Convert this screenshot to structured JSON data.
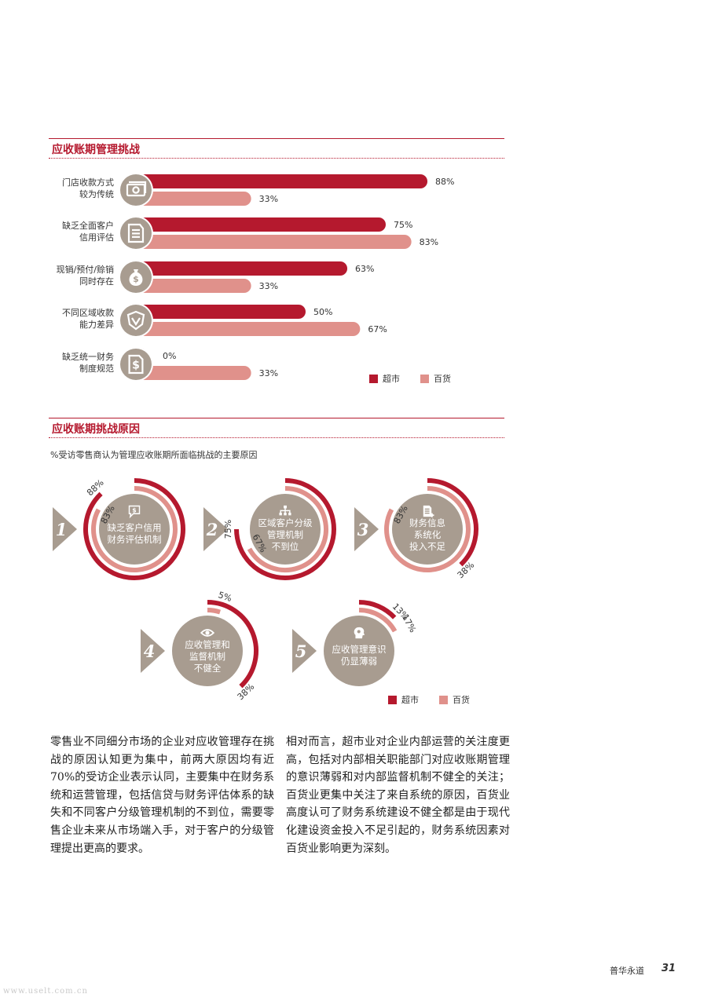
{
  "colors": {
    "supermarket": "#b5192e",
    "department": "#e0918b",
    "circle": "#a89c90",
    "arrow": "#a89c90",
    "accent": "#b5192e"
  },
  "section1": {
    "title": "应收账期管理挑战"
  },
  "section2": {
    "title": "应收账期挑战原因",
    "subtitle": "%受访零售商认为管理应收账期所面临挑战的主要原因"
  },
  "legend": {
    "supermarket": "超市",
    "department": "百货"
  },
  "chart_data": [
    {
      "type": "bar",
      "orientation": "horizontal",
      "title": "应收账期管理挑战",
      "categories": [
        [
          "门店收款方式",
          "较为传统"
        ],
        [
          "缺乏全面客户",
          "信用评估"
        ],
        [
          "现销/预付/赊销",
          "同时存在"
        ],
        [
          "不同区域收款",
          "能力差异"
        ],
        [
          "缺乏统一财务",
          "制度规范"
        ]
      ],
      "icons": [
        "money-icon",
        "document-icon",
        "money-bag-icon",
        "shield-icon",
        "dollar-document-icon"
      ],
      "series": [
        {
          "name": "超市",
          "values": [
            88,
            75,
            63,
            50,
            0
          ],
          "labels": [
            "88%",
            "75%",
            "63%",
            "50%",
            "0%"
          ]
        },
        {
          "name": "百货",
          "values": [
            33,
            83,
            33,
            67,
            33
          ],
          "labels": [
            "33%",
            "83%",
            "33%",
            "67%",
            "33%"
          ]
        }
      ],
      "xlim": [
        0,
        100
      ],
      "legend": "bottom-right"
    },
    {
      "type": "radial-bar",
      "title": "应收账期挑战原因",
      "subtitle": "%受访零售商认为管理应收账期所面临挑战的主要原因",
      "items": [
        {
          "rank": "1",
          "label": [
            "缺乏客户信用",
            "财务评估机制"
          ],
          "icon": "chat-dollar-icon",
          "supermarket": 88,
          "department": 83,
          "supermarket_label": "88%",
          "department_label": "83%"
        },
        {
          "rank": "2",
          "label": [
            "区域客户分级",
            "管理机制",
            "不到位"
          ],
          "icon": "hierarchy-icon",
          "supermarket": 75,
          "department": 67,
          "supermarket_label": "75%",
          "department_label": "67%"
        },
        {
          "rank": "3",
          "label": [
            "财务信息",
            "系统化",
            "投入不足"
          ],
          "icon": "document-plus-icon",
          "supermarket": 38,
          "department": 83,
          "supermarket_label": "38%",
          "department_label": "83%"
        },
        {
          "rank": "4",
          "label": [
            "应收管理和",
            "监督机制",
            "不健全"
          ],
          "icon": "eye-icon",
          "supermarket": 38,
          "department": 5,
          "supermarket_label": "38%",
          "department_label": "5%"
        },
        {
          "rank": "5",
          "label": [
            "应收管理意识",
            "仍显薄弱"
          ],
          "icon": "head-gear-icon",
          "supermarket": 13,
          "department": 17,
          "supermarket_label": "13%",
          "department_label": "17%"
        }
      ],
      "legend": "bottom-right"
    }
  ],
  "paragraphs": {
    "left": "零售业不同细分市场的企业对应收管理存在挑战的原因认知更为集中，前两大原因均有近70%的受访企业表示认同，主要集中在财务系统和运营管理，包括信贷与财务评估体系的缺失和不同客户分级管理机制的不到位，需要零售企业未来从市场端入手，对于客户的分级管理提出更高的要求。",
    "right": "相对而言，超市业对企业内部运营的关注度更高，包括对内部相关职能部门对应收账期管理的意识薄弱和对内部监督机制不健全的关注；百货业更集中关注了来自系统的原因，百货业高度认可了财务系统建设不健全都是由于现代化建设资金投入不足引起的，财务系统因素对百货业影响更为深刻。"
  },
  "footer": {
    "brand": "普华永道",
    "page": "31"
  },
  "watermark": "www.uselt.com.cn"
}
